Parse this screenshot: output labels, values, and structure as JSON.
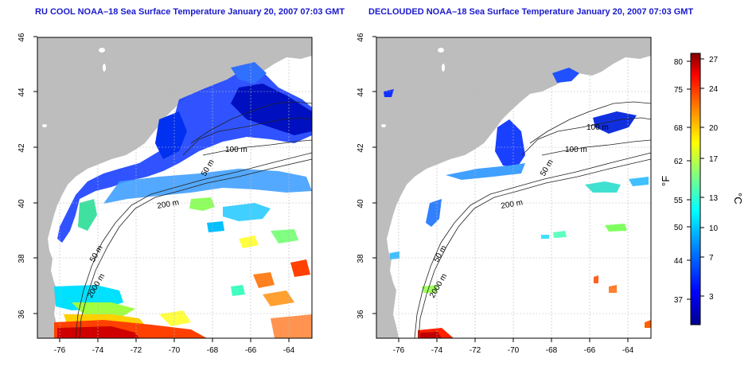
{
  "maps": [
    {
      "title": "RU COOL NOAA–18 Sea Surface Temperature January 20, 2007 07:03 GMT",
      "x_ticks": [
        "-76",
        "-74",
        "-72",
        "-70",
        "-68",
        "-66",
        "-64"
      ],
      "y_ticks": [
        "46",
        "44",
        "42",
        "40",
        "38",
        "36"
      ],
      "contour_labels": [
        "100 m",
        "50 m",
        "200 m",
        "50 m",
        "2000 m"
      ]
    },
    {
      "title": "DECLOUDED NOAA–18 Sea Surface Temperature January 20, 2007 07:03 GMT",
      "x_ticks": [
        "-76",
        "-74",
        "-72",
        "-70",
        "-68",
        "-66",
        "-64"
      ],
      "y_ticks": [
        "46",
        "44",
        "42",
        "40",
        "38",
        "36"
      ],
      "contour_labels": [
        "100 m",
        "100 m",
        "50 m",
        "200 m",
        "50 m",
        "2000 m"
      ]
    }
  ],
  "colorbar": {
    "fahrenheit_label": "°F",
    "celsius_label": "°C",
    "fahrenheit_ticks": [
      "80",
      "75",
      "68",
      "62",
      "55",
      "50",
      "44",
      "37"
    ],
    "celsius_ticks": [
      "27",
      "24",
      "20",
      "17",
      "13",
      "10",
      "7",
      "3"
    ],
    "colors": [
      "#00008f",
      "#0000ff",
      "#0080ff",
      "#00ffff",
      "#80ff80",
      "#ffff00",
      "#ff8000",
      "#ff0000",
      "#800000"
    ]
  },
  "colors": {
    "land": "#bdbdbd",
    "title": "#1a1acc",
    "grid": "#bbbbbb"
  }
}
